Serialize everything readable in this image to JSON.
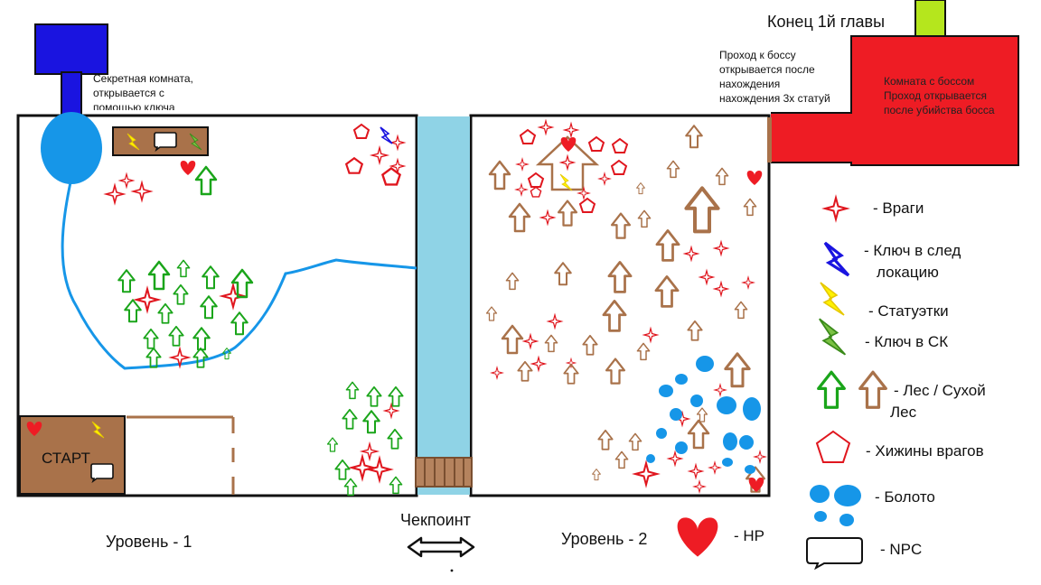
{
  "labels": {
    "chapter_end": "Конец 1й главы",
    "secret_room": [
      "Секретная комната,",
      "открывается с",
      "помощью ключа"
    ],
    "boss_passage": [
      "Проход к боссу",
      "открывается после",
      "нахождения",
      "нахождения 3х статуй"
    ],
    "boss_room": [
      "Комната с боссом",
      "Проход открывается",
      "после убийства босса"
    ],
    "start": "СТАРТ",
    "level1": "Уровень  - 1",
    "level2": "Уровень - 2",
    "checkpoint": "Чекпоинт"
  },
  "legend": [
    {
      "icon": "enemy-star-icon",
      "label": "- Враги"
    },
    {
      "icon": "blue-lightning-icon",
      "label": "- Ключ в след локацию"
    },
    {
      "icon": "yellow-lightning-icon",
      "label": "- Статуэтки"
    },
    {
      "icon": "green-lightning-icon",
      "label": "- Ключ  в СК"
    },
    {
      "icon": "forest-arrow-icon",
      "label": "- Лес / Сухой Лес"
    },
    {
      "icon": "pentagon-icon",
      "label": "- Хижины врагов"
    },
    {
      "icon": "swamp-icon",
      "label": "- Болото"
    },
    {
      "icon": "heart-icon",
      "label": "- HP"
    },
    {
      "icon": "speech-bubble-icon",
      "label": "- NPC"
    }
  ],
  "legend_lines": {
    "enemies": "- Враги",
    "key_next_1": "- Ключ в след",
    "key_next_2": "локацию",
    "statues": "- Статуэтки",
    "key_sk": "- Ключ  в СК",
    "forest_1": "- Лес / Сухой",
    "forest_2": "Лес",
    "huts": "- Хижины врагов",
    "swamp": "- Болото",
    "hp": "- HP",
    "npc": "- NPC"
  },
  "colors": {
    "green_forest": "#1aa51a",
    "dry_forest": "#a9724a",
    "enemy_red": "#e0161e",
    "river": "#8fd3e6",
    "swamp_blue": "#1696e8",
    "secret_blue": "#1a14e0",
    "boss_red": "#ee1c24",
    "chapter_green": "#b5e61d",
    "wood_brown": "#a9724a",
    "yellow": "#fff200"
  }
}
